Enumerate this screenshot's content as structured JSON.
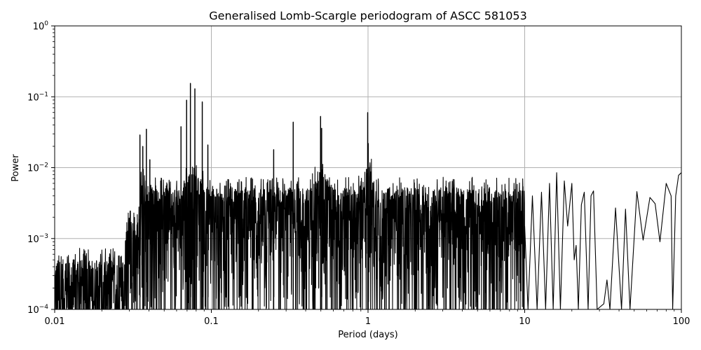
{
  "chart_data": {
    "type": "line",
    "title": "Generalised Lomb-Scargle periodogram of ASCC 581053",
    "xlabel": "Period (days)",
    "ylabel": "Power",
    "xscale": "log",
    "yscale": "log",
    "xlim": [
      0.01,
      100
    ],
    "ylim": [
      0.0001,
      1
    ],
    "grid": true,
    "line_color": "#000000",
    "x_ticks": [
      {
        "value": 0.01,
        "label": "0.01"
      },
      {
        "value": 0.1,
        "label": "0.1"
      },
      {
        "value": 1,
        "label": "1"
      },
      {
        "value": 10,
        "label": "10"
      },
      {
        "value": 100,
        "label": "100"
      }
    ],
    "y_ticks": [
      {
        "value": 0.0001,
        "base": "10",
        "exp": "−4"
      },
      {
        "value": 0.001,
        "base": "10",
        "exp": "−3"
      },
      {
        "value": 0.01,
        "base": "10",
        "exp": "−2"
      },
      {
        "value": 0.1,
        "base": "10",
        "exp": "−1"
      },
      {
        "value": 1,
        "base": "10",
        "exp": "0"
      }
    ],
    "peaks": [
      {
        "period": 0.035,
        "power": 0.029
      },
      {
        "period": 0.0385,
        "power": 0.035
      },
      {
        "period": 0.0365,
        "power": 0.02
      },
      {
        "period": 0.0405,
        "power": 0.013
      },
      {
        "period": 0.064,
        "power": 0.038
      },
      {
        "period": 0.0695,
        "power": 0.09
      },
      {
        "period": 0.0735,
        "power": 0.155
      },
      {
        "period": 0.0785,
        "power": 0.13
      },
      {
        "period": 0.0875,
        "power": 0.085
      },
      {
        "period": 0.095,
        "power": 0.021
      },
      {
        "period": 0.25,
        "power": 0.018
      },
      {
        "period": 0.333,
        "power": 0.044
      },
      {
        "period": 0.498,
        "power": 0.053
      },
      {
        "period": 0.506,
        "power": 0.036
      },
      {
        "period": 0.995,
        "power": 0.06
      },
      {
        "period": 1.003,
        "power": 0.022
      }
    ],
    "long_period_curve": [
      [
        10.0,
        0.0015
      ],
      [
        10.5,
        0.0001
      ],
      [
        11.2,
        0.004
      ],
      [
        12.0,
        0.0001
      ],
      [
        12.8,
        0.0045
      ],
      [
        13.6,
        0.0001
      ],
      [
        14.4,
        0.006
      ],
      [
        15.2,
        0.0001
      ],
      [
        16.0,
        0.0085
      ],
      [
        16.9,
        0.0001
      ],
      [
        17.9,
        0.0065
      ],
      [
        18.8,
        0.0015
      ],
      [
        20.0,
        0.006
      ],
      [
        20.7,
        0.0005
      ],
      [
        21.3,
        0.0008
      ],
      [
        22.0,
        0.0001
      ],
      [
        23.0,
        0.003
      ],
      [
        24.0,
        0.0045
      ],
      [
        25.4,
        0.0001
      ],
      [
        26.5,
        0.004
      ],
      [
        27.5,
        0.0047
      ],
      [
        29.0,
        0.0001
      ],
      [
        32.0,
        0.00012
      ],
      [
        33.5,
        0.00026
      ],
      [
        35.0,
        0.0001
      ],
      [
        38.0,
        0.0027
      ],
      [
        41.5,
        0.0001
      ],
      [
        44.0,
        0.0026
      ],
      [
        47.0,
        0.0001
      ],
      [
        52.0,
        0.0046
      ],
      [
        57.0,
        0.00095
      ],
      [
        63.0,
        0.0038
      ],
      [
        68.0,
        0.0031
      ],
      [
        73.0,
        0.0009
      ],
      [
        80.0,
        0.006
      ],
      [
        86.0,
        0.004
      ],
      [
        88.0,
        0.0001
      ],
      [
        92.0,
        0.004
      ],
      [
        96.0,
        0.0078
      ],
      [
        100.0,
        0.0085
      ]
    ]
  }
}
